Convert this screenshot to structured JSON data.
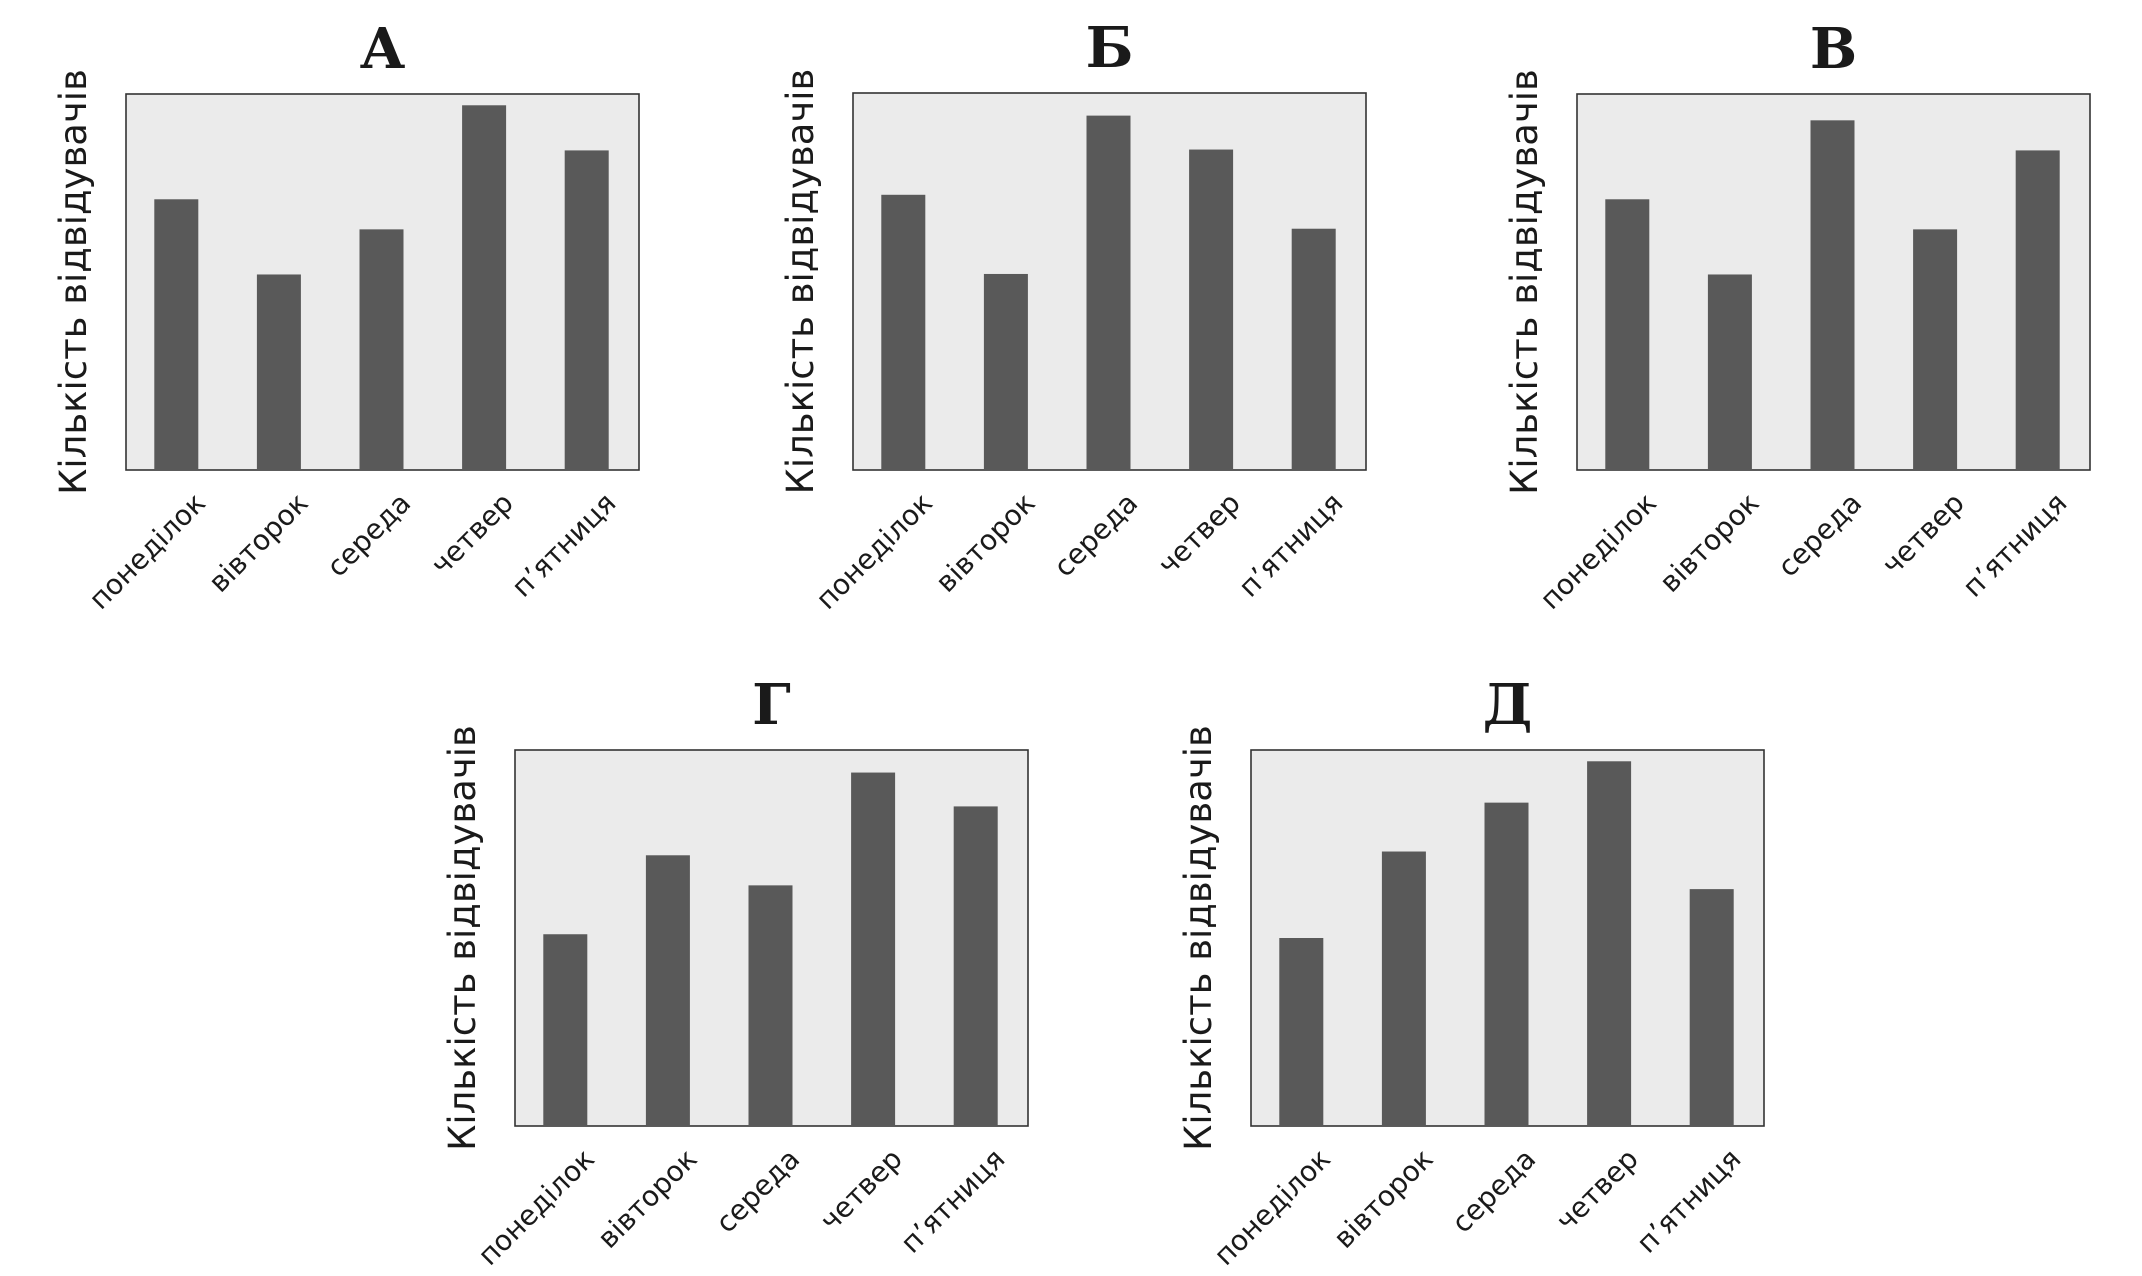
{
  "chart_data": [
    {
      "type": "bar",
      "title": "А",
      "ylabel": "Кількість відвідувачів",
      "xlabel": "",
      "categories": [
        "понеділок",
        "вівторок",
        "середа",
        "четвер",
        "п’ятниця"
      ],
      "values": [
        72,
        52,
        64,
        97,
        85
      ],
      "ylim": [
        0,
        100
      ],
      "grid": false
    },
    {
      "type": "bar",
      "title": "Б",
      "ylabel": "Кількість відвідувачів",
      "xlabel": "",
      "categories": [
        "понеділок",
        "вівторок",
        "середа",
        "четвер",
        "п’ятниця"
      ],
      "values": [
        73,
        52,
        94,
        85,
        64
      ],
      "ylim": [
        0,
        100
      ],
      "grid": false
    },
    {
      "type": "bar",
      "title": "В",
      "ylabel": "Кількість відвідувачів",
      "xlabel": "",
      "categories": [
        "понеділок",
        "вівторок",
        "середа",
        "четвер",
        "п’ятниця"
      ],
      "values": [
        72,
        52,
        93,
        64,
        85
      ],
      "ylim": [
        0,
        100
      ],
      "grid": false
    },
    {
      "type": "bar",
      "title": "Г",
      "ylabel": "Кількість відвідувачів",
      "xlabel": "",
      "categories": [
        "понеділок",
        "вівторок",
        "середа",
        "четвер",
        "п’ятниця"
      ],
      "values": [
        51,
        72,
        64,
        94,
        85
      ],
      "ylim": [
        0,
        100
      ],
      "grid": false
    },
    {
      "type": "bar",
      "title": "Д",
      "ylabel": "Кількість відвідувачів",
      "xlabel": "",
      "categories": [
        "понеділок",
        "вівторок",
        "середа",
        "четвер",
        "п’ятниця"
      ],
      "values": [
        50,
        73,
        86,
        97,
        63
      ],
      "ylim": [
        0,
        100
      ],
      "grid": false
    }
  ]
}
